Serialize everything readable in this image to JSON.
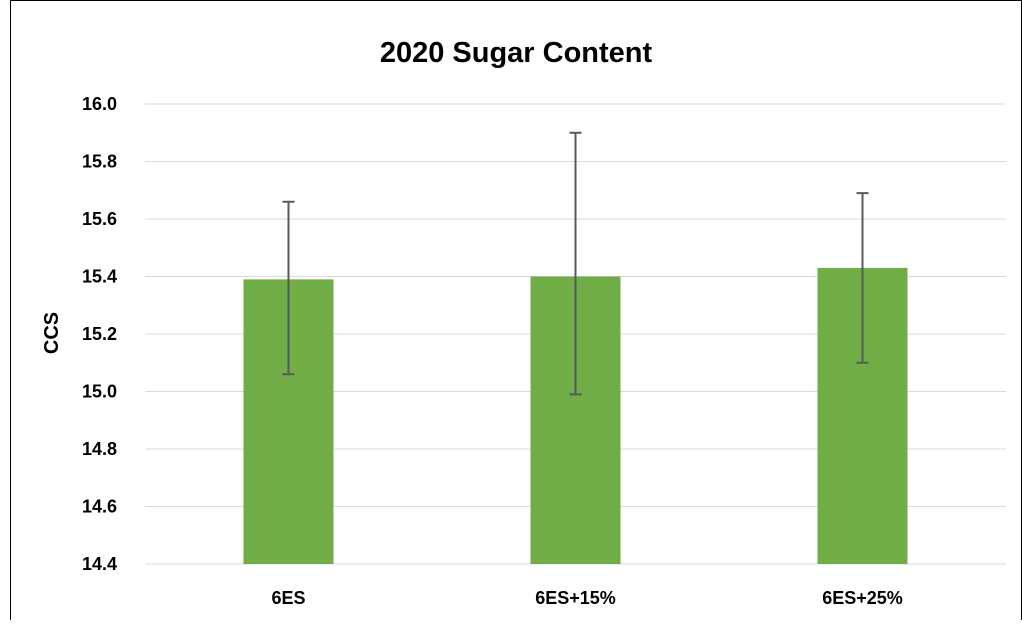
{
  "chart_data": {
    "type": "bar",
    "title": "2020 Sugar Content",
    "xlabel": "",
    "ylabel": "CCS",
    "categories": [
      "6ES",
      "6ES+15%",
      "6ES+25%"
    ],
    "series": [
      {
        "values": [
          15.39,
          15.4,
          15.43
        ],
        "error_low": [
          15.06,
          14.99,
          15.1
        ],
        "error_high": [
          15.66,
          15.9,
          15.69
        ]
      }
    ],
    "ylim": [
      14.4,
      16.0
    ],
    "yticks": [
      "14.4",
      "14.6",
      "14.8",
      "15.0",
      "15.2",
      "15.4",
      "15.6",
      "15.8",
      "16.0"
    ],
    "grid": true,
    "legend": "none",
    "colors": {
      "bar": "#70ad47",
      "grid": "#d9d9d9",
      "error_bar": "#595959",
      "text": "#000000",
      "frame": "#000000"
    }
  }
}
